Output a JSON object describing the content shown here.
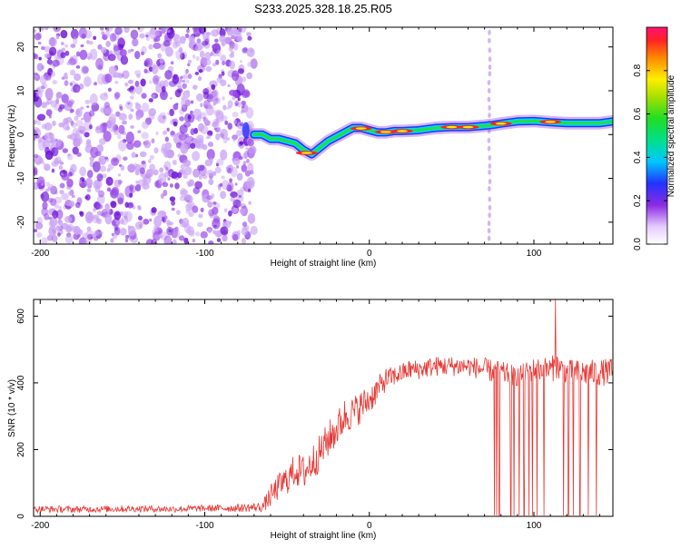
{
  "title": "S233.2025.328.18.25.R05",
  "colors": {
    "snr_line": "#e53935",
    "spectrogram_noise": "#8a2be2",
    "frame": "#000000"
  },
  "chart_data": [
    {
      "type": "heatmap",
      "name": "spectrogram",
      "xlabel": "Height of straight line (km)",
      "ylabel": "Frequency (Hz)",
      "xlim": [
        -204,
        148
      ],
      "ylim": [
        -25,
        24.5
      ],
      "xticks": [
        -200,
        -100,
        0,
        100
      ],
      "xtick_labels": [
        "-200",
        "-100",
        "0",
        "100"
      ],
      "yticks": [
        -20,
        -10,
        0,
        10,
        20
      ],
      "ytick_labels": [
        "-20",
        "-10",
        "0",
        "10",
        "20"
      ],
      "noise_region_x": [
        -204,
        -70
      ],
      "spike_x": 73,
      "trace": {
        "x": [
          -70,
          -65,
          -60,
          -55,
          -50,
          -45,
          -40,
          -35,
          -30,
          -25,
          -20,
          -15,
          -10,
          -5,
          0,
          5,
          10,
          15,
          20,
          30,
          40,
          50,
          60,
          70,
          75,
          80,
          90,
          100,
          110,
          120,
          130,
          140,
          148
        ],
        "y": [
          0,
          0,
          -1,
          -1,
          -1.5,
          -2,
          -3.5,
          -4.5,
          -3,
          -1.5,
          -0.5,
          0.5,
          1.5,
          1.5,
          1,
          0.5,
          0.5,
          0.8,
          0.8,
          1,
          1.5,
          1.7,
          1.7,
          2,
          2.2,
          2.5,
          3,
          3.1,
          2.8,
          2.6,
          2.6,
          2.6,
          3
        ]
      },
      "colorbar": {
        "label": "Normalized spectral amplitude",
        "range": [
          0,
          1
        ],
        "ticks": [
          0.0,
          0.2,
          0.4,
          0.6,
          0.8
        ],
        "tick_labels": [
          "0.0",
          "0.2",
          "0.4",
          "0.6",
          "0.8"
        ]
      }
    },
    {
      "type": "line",
      "name": "snr",
      "xlabel": "Height of straight line (km)",
      "ylabel": "SNR (10 * v/v)",
      "xlim": [
        -204,
        148
      ],
      "ylim": [
        0,
        650
      ],
      "xticks": [
        -200,
        -100,
        0,
        100
      ],
      "xtick_labels": [
        "-200",
        "-100",
        "0",
        "100"
      ],
      "yticks": [
        0,
        200,
        400,
        600
      ],
      "ytick_labels": [
        "0",
        "200",
        "400",
        "600"
      ],
      "series": [
        {
          "name": "SNR",
          "x": [
            -204,
            -180,
            -160,
            -140,
            -120,
            -100,
            -80,
            -65,
            -60,
            -55,
            -50,
            -45,
            -40,
            -35,
            -30,
            -25,
            -20,
            -15,
            -10,
            -5,
            0,
            5,
            10,
            15,
            20,
            25,
            30,
            40,
            50,
            60,
            70,
            80,
            90,
            100,
            110,
            114,
            120,
            130,
            140,
            148
          ],
          "y": [
            22,
            21,
            22,
            23,
            22,
            24,
            25,
            28,
            60,
            90,
            110,
            140,
            130,
            160,
            190,
            230,
            260,
            300,
            310,
            330,
            350,
            380,
            410,
            420,
            430,
            440,
            440,
            450,
            450,
            450,
            440,
            430,
            420,
            440,
            440,
            450,
            430,
            430,
            430,
            435
          ],
          "noise_amplitude": [
            10,
            10,
            10,
            10,
            10,
            10,
            12,
            15,
            35,
            40,
            45,
            50,
            55,
            55,
            55,
            55,
            55,
            55,
            50,
            50,
            45,
            40,
            35,
            30,
            30,
            30,
            30,
            30,
            30,
            30,
            35,
            35,
            30,
            35,
            40,
            40,
            40,
            40,
            40,
            40
          ]
        }
      ],
      "dropouts_x": [
        76,
        77.5,
        79,
        86,
        88,
        91,
        94,
        97,
        99,
        102,
        106,
        118,
        121,
        124,
        128,
        133,
        138
      ],
      "spike_x": 113,
      "spike_y": 650
    }
  ]
}
